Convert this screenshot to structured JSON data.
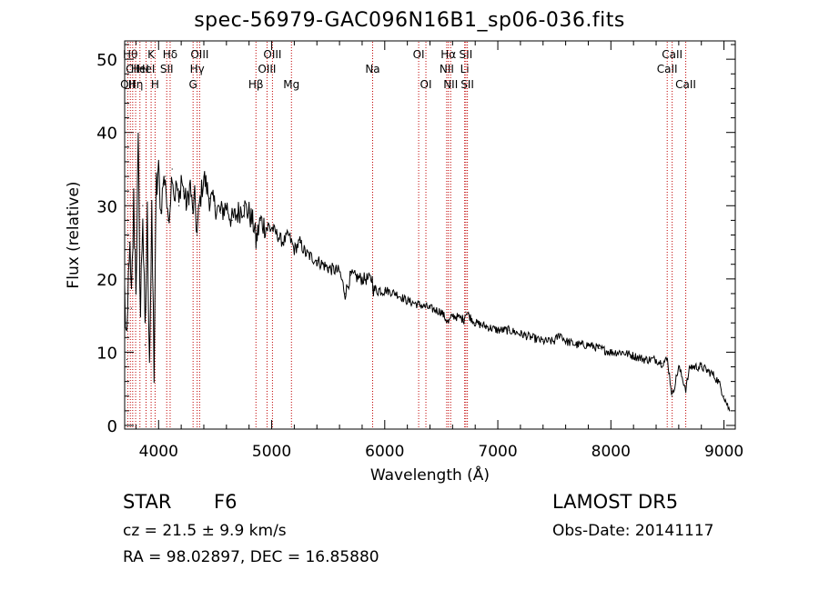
{
  "chart_data": {
    "type": "line",
    "title": "spec-56979-GAC096N16B1_sp06-036.fits",
    "xlabel": "Wavelength (Å)",
    "ylabel": "Flux (relative)",
    "xlim": [
      3700,
      9100
    ],
    "ylim": [
      -0.5,
      52.5
    ],
    "xticks": [
      4000,
      5000,
      6000,
      7000,
      8000,
      9000
    ],
    "yticks": [
      0,
      10,
      20,
      30,
      40,
      50
    ],
    "grid": false,
    "series": [
      {
        "x": [
          3700,
          3720,
          3740,
          3760,
          3780,
          3800,
          3820,
          3840,
          3860,
          3880,
          3900,
          3920,
          3940,
          3960,
          3980,
          4000,
          4020,
          4040,
          4060,
          4080,
          4100,
          4120,
          4140,
          4160,
          4180,
          4200,
          4220,
          4250,
          4280,
          4300,
          4320,
          4340,
          4360,
          4380,
          4400,
          4450,
          4500,
          4550,
          4600,
          4650,
          4700,
          4750,
          4800,
          4850,
          4861,
          4900,
          4950,
          5000,
          5050,
          5100,
          5150,
          5200,
          5250,
          5300,
          5400,
          5500,
          5600,
          5650,
          5700,
          5800,
          5890,
          5900,
          6000,
          6100,
          6200,
          6300,
          6400,
          6500,
          6563,
          6600,
          6700,
          6717,
          6800,
          6900,
          7000,
          7100,
          7200,
          7300,
          7400,
          7500,
          7550,
          7600,
          7700,
          7800,
          7900,
          8000,
          8100,
          8200,
          8300,
          8400,
          8450,
          8500,
          8542,
          8600,
          8662,
          8700,
          8800,
          8900,
          8950,
          9000,
          9050
        ],
        "y": [
          18,
          9,
          25,
          16,
          30,
          20,
          37,
          15,
          30,
          11,
          28,
          10,
          27,
          8,
          32,
          35,
          29,
          33,
          34,
          28,
          30,
          35,
          31,
          33,
          30,
          34,
          32,
          30,
          33,
          29,
          31,
          26,
          30,
          32,
          34,
          31,
          30,
          29,
          30,
          28,
          29,
          30,
          29,
          27,
          25,
          28,
          27,
          27,
          26,
          25,
          26,
          24,
          25,
          23.5,
          22.5,
          21.5,
          21,
          18,
          20.5,
          20,
          20,
          18.5,
          18.5,
          18,
          17,
          16.5,
          16,
          15.5,
          14,
          15,
          14.5,
          15.5,
          14,
          13.5,
          13,
          13,
          12.5,
          12,
          11.5,
          11.5,
          12.5,
          11.5,
          11,
          11,
          10.5,
          10,
          10,
          9.5,
          9,
          9,
          8.5,
          9,
          4,
          8,
          5,
          8,
          8,
          7,
          6,
          4,
          2
        ]
      }
    ],
    "lines": [
      {
        "wave": 3727,
        "label": "OII",
        "row": 3
      },
      {
        "wave": 3750,
        "label": "H&#952;",
        "row": 1
      },
      {
        "wave": 3771,
        "label": "CII",
        "row": 2
      },
      {
        "wave": 3797,
        "label": "H&#951;",
        "row": 3
      },
      {
        "wave": 3835,
        "label": "HeI",
        "row": 2
      },
      {
        "wave": 3889,
        "label": "HeI",
        "row": 2
      },
      {
        "wave": 3934,
        "label": "K",
        "row": 1
      },
      {
        "wave": 3969,
        "label": "H",
        "row": 3
      },
      {
        "wave": 4072,
        "label": "SII",
        "row": 2
      },
      {
        "wave": 4102,
        "label": "H&#948;",
        "row": 1
      },
      {
        "wave": 4305,
        "label": "G",
        "row": 3
      },
      {
        "wave": 4341,
        "label": "H&#947;",
        "row": 2
      },
      {
        "wave": 4363,
        "label": "OIII",
        "row": 1
      },
      {
        "wave": 4861,
        "label": "H&#946;",
        "row": 3
      },
      {
        "wave": 4959,
        "label": "OIII",
        "row": 2
      },
      {
        "wave": 5007,
        "label": "OIII",
        "row": 1
      },
      {
        "wave": 5175,
        "label": "Mg",
        "row": 3
      },
      {
        "wave": 5893,
        "label": "Na",
        "row": 2
      },
      {
        "wave": 6300,
        "label": "OI",
        "row": 1
      },
      {
        "wave": 6364,
        "label": "OI",
        "row": 3
      },
      {
        "wave": 6548,
        "label": "NII",
        "row": 2
      },
      {
        "wave": 6563,
        "label": "H&#945;",
        "row": 1
      },
      {
        "wave": 6583,
        "label": "NII",
        "row": 3
      },
      {
        "wave": 6707,
        "label": "Li",
        "row": 2
      },
      {
        "wave": 6717,
        "label": "SII",
        "row": 1
      },
      {
        "wave": 6731,
        "label": "SII",
        "row": 3
      },
      {
        "wave": 8498,
        "label": "CaII",
        "row": 2
      },
      {
        "wave": 8542,
        "label": "CaII",
        "row": 1
      },
      {
        "wave": 8662,
        "label": "CaII",
        "row": 3
      }
    ],
    "line_color": "#c00000"
  },
  "info": {
    "object_class": "STAR",
    "subclass": "F6",
    "survey": "LAMOST DR5",
    "cz": "cz = 21.5 ± 9.9 km/s",
    "obs_date": "Obs-Date: 20141117",
    "coords": "RA =  98.02897, DEC =  16.85880"
  }
}
